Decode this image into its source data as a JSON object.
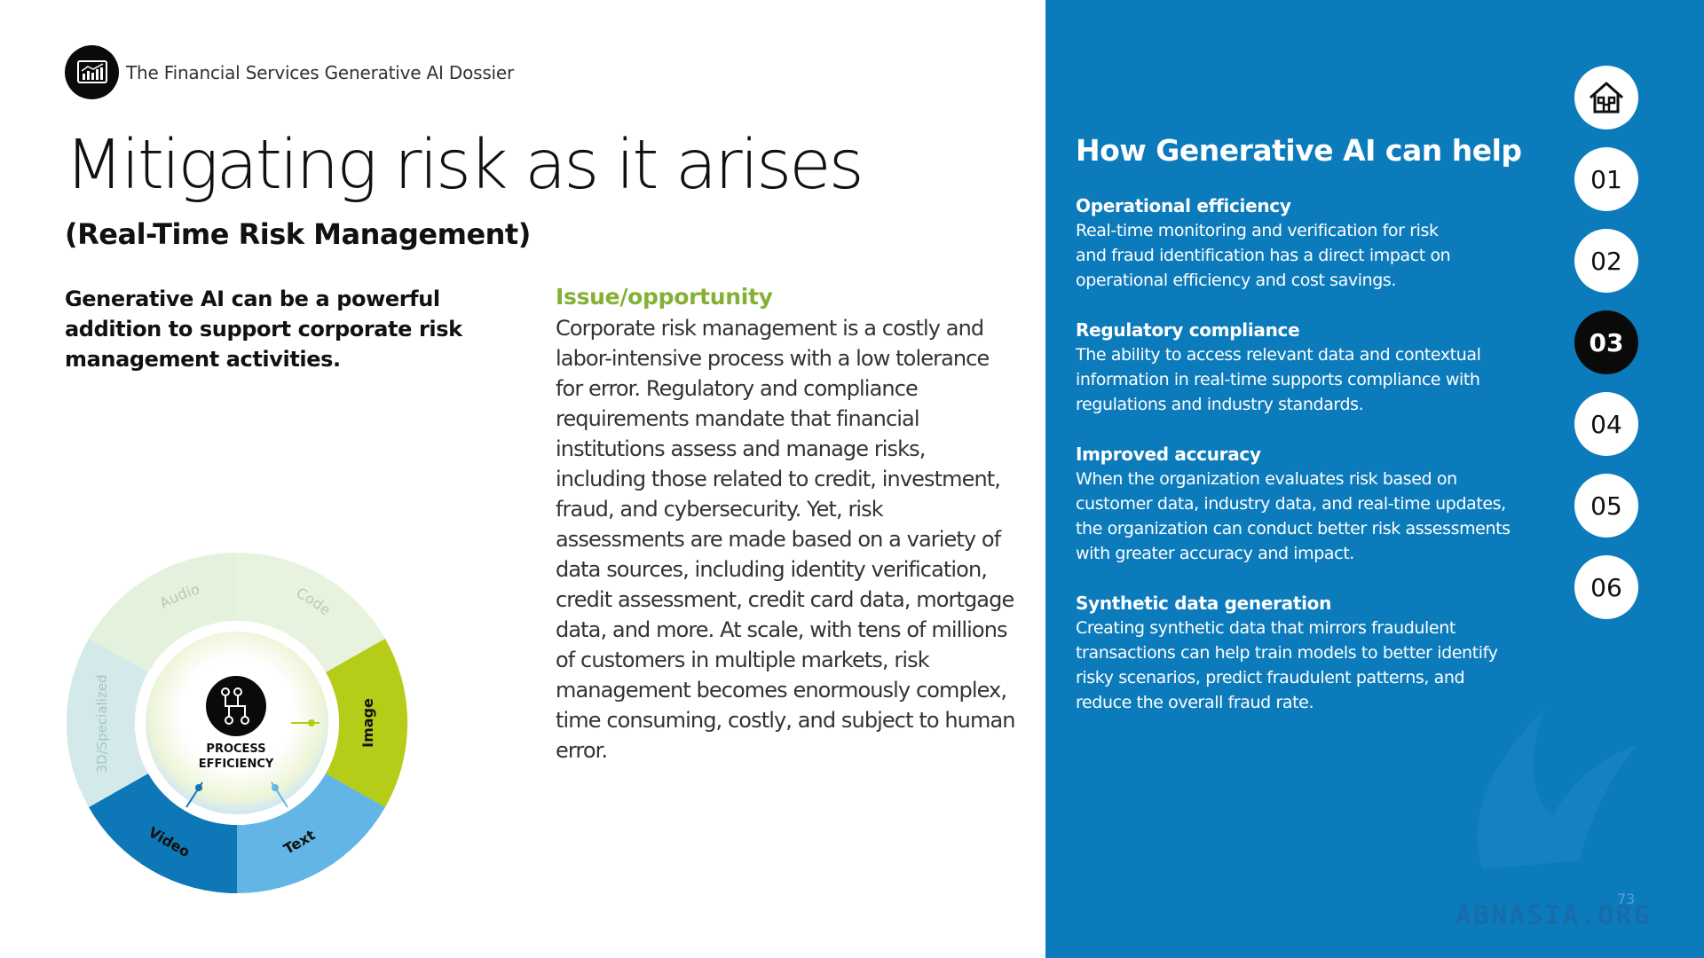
{
  "header": {
    "brand_text": "The Financial Services Generative AI Dossier",
    "logo_icon": "chart-icon"
  },
  "page": {
    "title": "Mitigating risk as it arises",
    "subtitle": "(Real-Time Risk Management)",
    "intro": "Generative AI can be a powerful addition to support corporate risk management activities."
  },
  "issue": {
    "heading": "Issue/opportunity",
    "body": "Corporate risk management is a costly and labor-intensive process with a low tolerance for error. Regulatory and compliance requirements mandate that financial institutions assess and manage risks, including those related to credit, investment, fraud, and cybersecurity. Yet, risk assessments are made based on a variety of data sources, including identity verification, credit assessment, credit card data, mortgage data, and more. At scale, with tens of millions of customers in multiple markets, risk management becomes enormously complex, time consuming, costly, and subject to human error."
  },
  "wheel": {
    "center_label_1": "PROCESS",
    "center_label_2": "EFFICIENCY",
    "center_icon": "process-flow-icon",
    "segments": [
      "Audio",
      "Code",
      "Image",
      "Text",
      "Video",
      "3D/Specialized"
    ],
    "colors": {
      "light": "#e4f1dc",
      "light2": "#d3e9ea",
      "image": "#b5cc18",
      "text": "#63b5e5",
      "video": "#0e77b8"
    }
  },
  "help": {
    "heading": "How Generative AI can help",
    "items": [
      {
        "title": "Operational efficiency",
        "text": "Real-time monitoring and verification for risk and fraud identification has a direct impact on operational efficiency and cost savings."
      },
      {
        "title": "Regulatory compliance",
        "text": "The ability to access relevant data and contextual information in real-time supports compliance with regulations and industry standards."
      },
      {
        "title": "Improved accuracy",
        "text": "When the organization evaluates risk based on customer data, industry data, and real-time updates, the organization can conduct better risk assessments with greater accuracy and impact."
      },
      {
        "title": "Synthetic data generation",
        "text": "Creating synthetic data that mirrors fraudulent transactions can help train models to better identify risky scenarios, predict fraudulent patterns, and reduce the overall fraud rate."
      }
    ]
  },
  "nav": {
    "home_icon": "home-icon",
    "items": [
      "01",
      "02",
      "03",
      "04",
      "05",
      "06"
    ],
    "active": "03"
  },
  "footer": {
    "page_number": "73",
    "watermark": "ABNASIA.ORG"
  },
  "colors": {
    "panel": "#0c7bbb",
    "accent_green": "#84b135"
  }
}
